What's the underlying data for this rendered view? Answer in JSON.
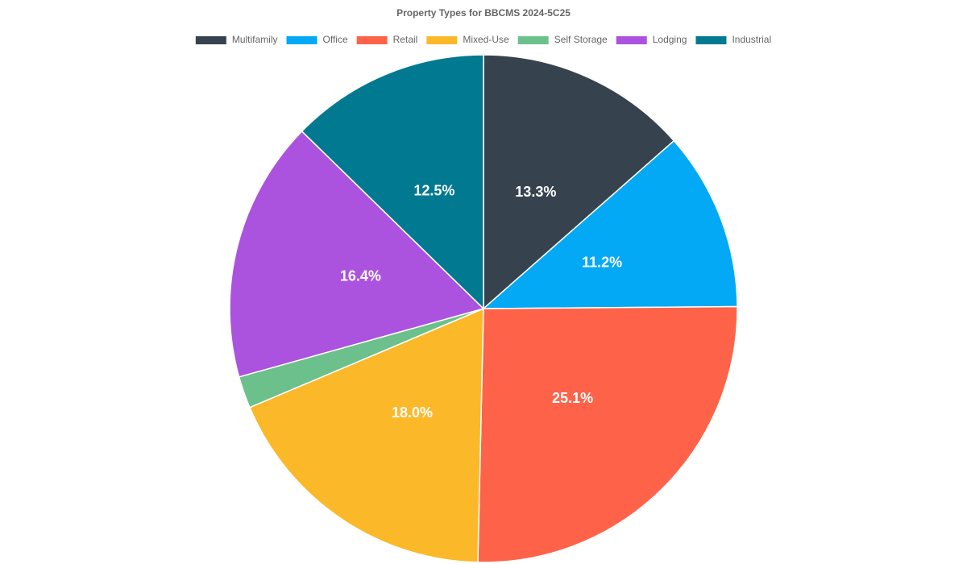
{
  "chart_data": {
    "type": "pie",
    "title": "Property Types for BBCMS 2024-5C25",
    "categories": [
      "Multifamily",
      "Office",
      "Retail",
      "Mixed-Use",
      "Self Storage",
      "Lodging",
      "Industrial"
    ],
    "values": [
      13.3,
      11.2,
      25.1,
      18.0,
      2.0,
      16.4,
      12.5
    ],
    "value_labels": [
      "13.3%",
      "11.2%",
      "25.1%",
      "18.0%",
      null,
      "16.4%",
      "12.5%"
    ],
    "colors": [
      "#36434f",
      "#03a9f4",
      "#fe634a",
      "#fbb829",
      "#6cc08b",
      "#ab53de",
      "#007991"
    ],
    "legend": "top"
  }
}
